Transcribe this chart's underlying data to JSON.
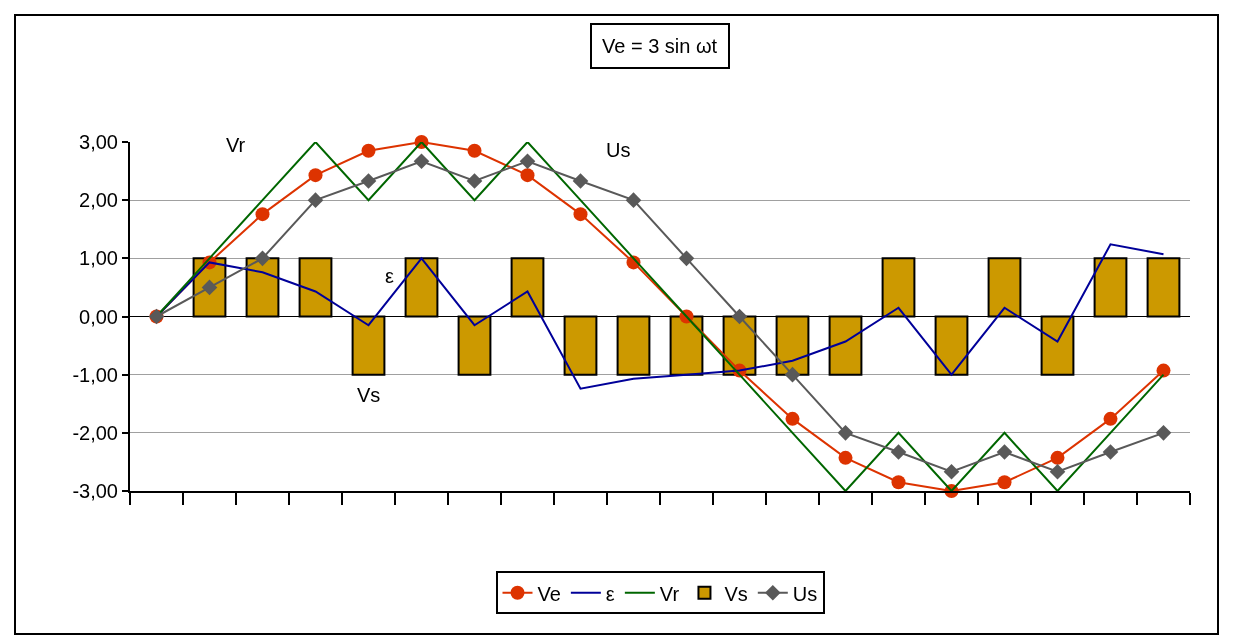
{
  "chart_data": {
    "type": "line",
    "title": "Ve = 3 sin ωt",
    "categories": [
      null,
      null,
      null,
      null,
      null,
      null,
      null,
      null,
      null,
      null,
      null,
      null,
      null,
      null,
      null,
      null,
      null,
      null,
      null,
      null
    ],
    "series": [
      {
        "name": "Ve",
        "color": "#dd3300",
        "marker": "circle",
        "values": [
          0,
          0.93,
          1.76,
          2.43,
          2.85,
          3,
          2.85,
          2.43,
          1.76,
          0.93,
          0,
          -0.93,
          -1.76,
          -2.43,
          -2.85,
          -3,
          -2.85,
          -2.43,
          -1.76,
          -0.93
        ]
      },
      {
        "name": "ε",
        "color": "#000099",
        "marker": "none",
        "values": [
          0,
          0.93,
          0.76,
          0.43,
          -0.15,
          1,
          -0.15,
          0.43,
          -1.24,
          -1.07,
          -1,
          -0.93,
          -0.76,
          -0.43,
          0.15,
          -1,
          0.15,
          -0.43,
          1.24,
          1.07
        ]
      },
      {
        "name": "Vr",
        "color": "#006600",
        "marker": "none",
        "values": [
          0,
          1,
          2,
          3,
          2,
          3,
          2,
          3,
          2,
          1,
          0,
          -1,
          -2,
          -3,
          -2,
          -3,
          -2,
          -3,
          -2,
          -1
        ]
      },
      {
        "name": "Vs",
        "type": "bar",
        "color": "#cc9900",
        "values": [
          null,
          1,
          1,
          1,
          -1,
          1,
          -1,
          1,
          -1,
          -1,
          -1,
          -1,
          -1,
          -1,
          1,
          -1,
          1,
          -1,
          1,
          1
        ]
      },
      {
        "name": "Us",
        "color": "#595959",
        "marker": "diamond",
        "values": [
          0,
          0.5,
          1,
          2,
          2.33,
          2.67,
          2.33,
          2.67,
          2.33,
          2,
          1,
          0,
          -1,
          -2,
          -2.33,
          -2.67,
          -2.33,
          -2.67,
          -2.33,
          -2
        ]
      }
    ],
    "ylim": [
      -3,
      3
    ],
    "yticks": [
      {
        "value": -3,
        "label": "-3,00"
      },
      {
        "value": -2,
        "label": "-2,00"
      },
      {
        "value": -1,
        "label": "-1,00"
      },
      {
        "value": 0,
        "label": "0,00"
      },
      {
        "value": 1,
        "label": "1,00"
      },
      {
        "value": 2,
        "label": "2,00"
      },
      {
        "value": 3,
        "label": "3,00"
      }
    ],
    "grid": "y",
    "legend": "bottom",
    "tick_labels": "y"
  }
}
